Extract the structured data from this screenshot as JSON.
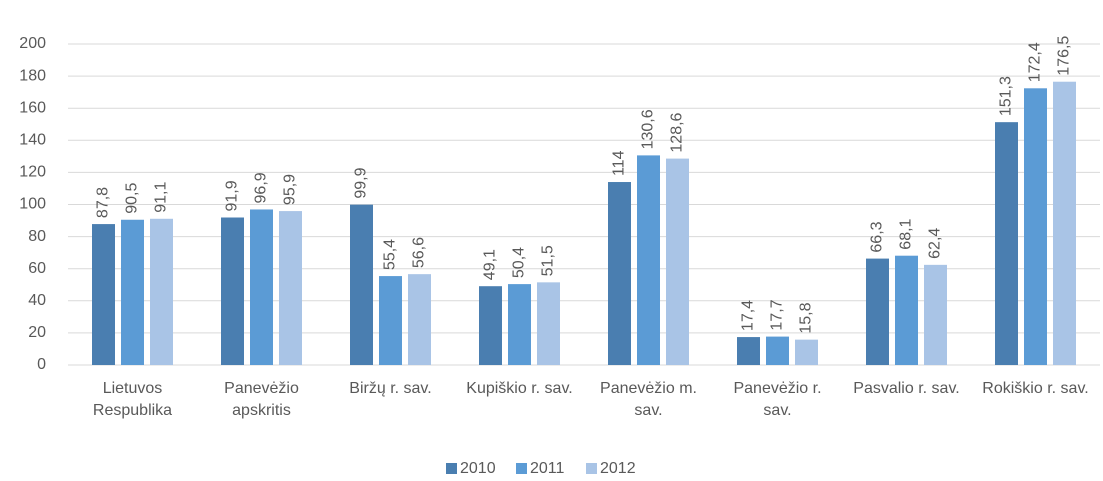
{
  "chart_data": {
    "type": "bar",
    "categories": [
      "Lietuvos Respublika",
      "Panevėžio apskritis",
      "Biržų r. sav.",
      "Kupiškio r. sav.",
      "Panevėžio m. sav.",
      "Panevėžio r. sav.",
      "Pasvalio r. sav.",
      "Rokiškio r. sav."
    ],
    "series": [
      {
        "name": "2010",
        "color": "#4a7eb0",
        "values": [
          87.8,
          91.9,
          99.9,
          49.1,
          114,
          17.4,
          66.3,
          151.3
        ],
        "value_labels": [
          "87,8",
          "91,9",
          "99,9",
          "49,1",
          "114",
          "17,4",
          "66,3",
          "151,3"
        ]
      },
      {
        "name": "2011",
        "color": "#5b9bd5",
        "values": [
          90.5,
          96.9,
          55.4,
          50.4,
          130.6,
          17.7,
          68.1,
          172.4
        ],
        "value_labels": [
          "90,5",
          "96,9",
          "55,4",
          "50,4",
          "130,6",
          "17,7",
          "68,1",
          "172,4"
        ]
      },
      {
        "name": "2012",
        "color": "#a9c4e6",
        "values": [
          91.1,
          95.9,
          56.6,
          51.5,
          128.6,
          15.8,
          62.4,
          176.5
        ],
        "value_labels": [
          "91,1",
          "95,9",
          "56,6",
          "51,5",
          "128,6",
          "15,8",
          "62,4",
          "176,5"
        ]
      }
    ],
    "ylim": [
      0,
      200
    ],
    "yticks": [
      0,
      20,
      40,
      60,
      80,
      100,
      120,
      140,
      160,
      180,
      200
    ],
    "grid": true,
    "legend": "bottom"
  }
}
